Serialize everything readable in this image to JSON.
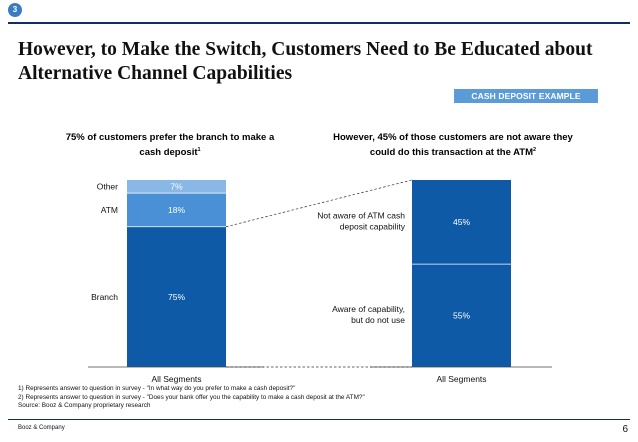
{
  "badge": "3",
  "title": "However, to Make the Switch, Customers Need to Be Educated about Alternative Channel Capabilities",
  "tag": "CASH DEPOSIT EXAMPLE",
  "left_subhead": {
    "text": "75% of customers prefer the branch to make a cash deposit",
    "footnote_ref": "1"
  },
  "right_subhead": {
    "text": "However, 45% of those customers are not aware they could do this transaction at the ATM",
    "footnote_ref": "2"
  },
  "colors": {
    "dark": "#0e5aa7",
    "mid": "#4a90d6",
    "light": "#8ab8e6",
    "title_rule": "#0d2f63",
    "tag": "#5b9bd8"
  },
  "chart_data": [
    {
      "type": "bar",
      "stacked": true,
      "categories": [
        "All Segments"
      ],
      "series": [
        {
          "name": "Branch",
          "values": [
            75
          ],
          "label": "75%",
          "color": "#0e5aa7"
        },
        {
          "name": "ATM",
          "values": [
            18
          ],
          "label": "18%",
          "color": "#4a90d6"
        },
        {
          "name": "Other",
          "values": [
            7
          ],
          "label": "7%",
          "color": "#8ab8e6"
        }
      ],
      "ylim": [
        0,
        100
      ],
      "grid": false
    },
    {
      "type": "bar",
      "stacked": true,
      "categories": [
        "All Segments"
      ],
      "series": [
        {
          "name": "Aware of capability, but do not use",
          "values": [
            55
          ],
          "label": "55%",
          "color": "#0e5aa7"
        },
        {
          "name": "Not aware of ATM cash deposit capability",
          "values": [
            45
          ],
          "label": "45%",
          "color": "#0e5aa7"
        }
      ],
      "ylim": [
        0,
        100
      ],
      "grid": false
    }
  ],
  "footnotes": [
    "1) Represents answer to question in survey - \"In what way do you prefer to make a cash deposit?\"",
    "2) Represents answer to question in survey - \"Does your bank offer you the capability to make a cash deposit at the ATM?\"",
    "Source: Booz & Company proprietary research"
  ],
  "company": "Booz & Company",
  "page_number": "6"
}
